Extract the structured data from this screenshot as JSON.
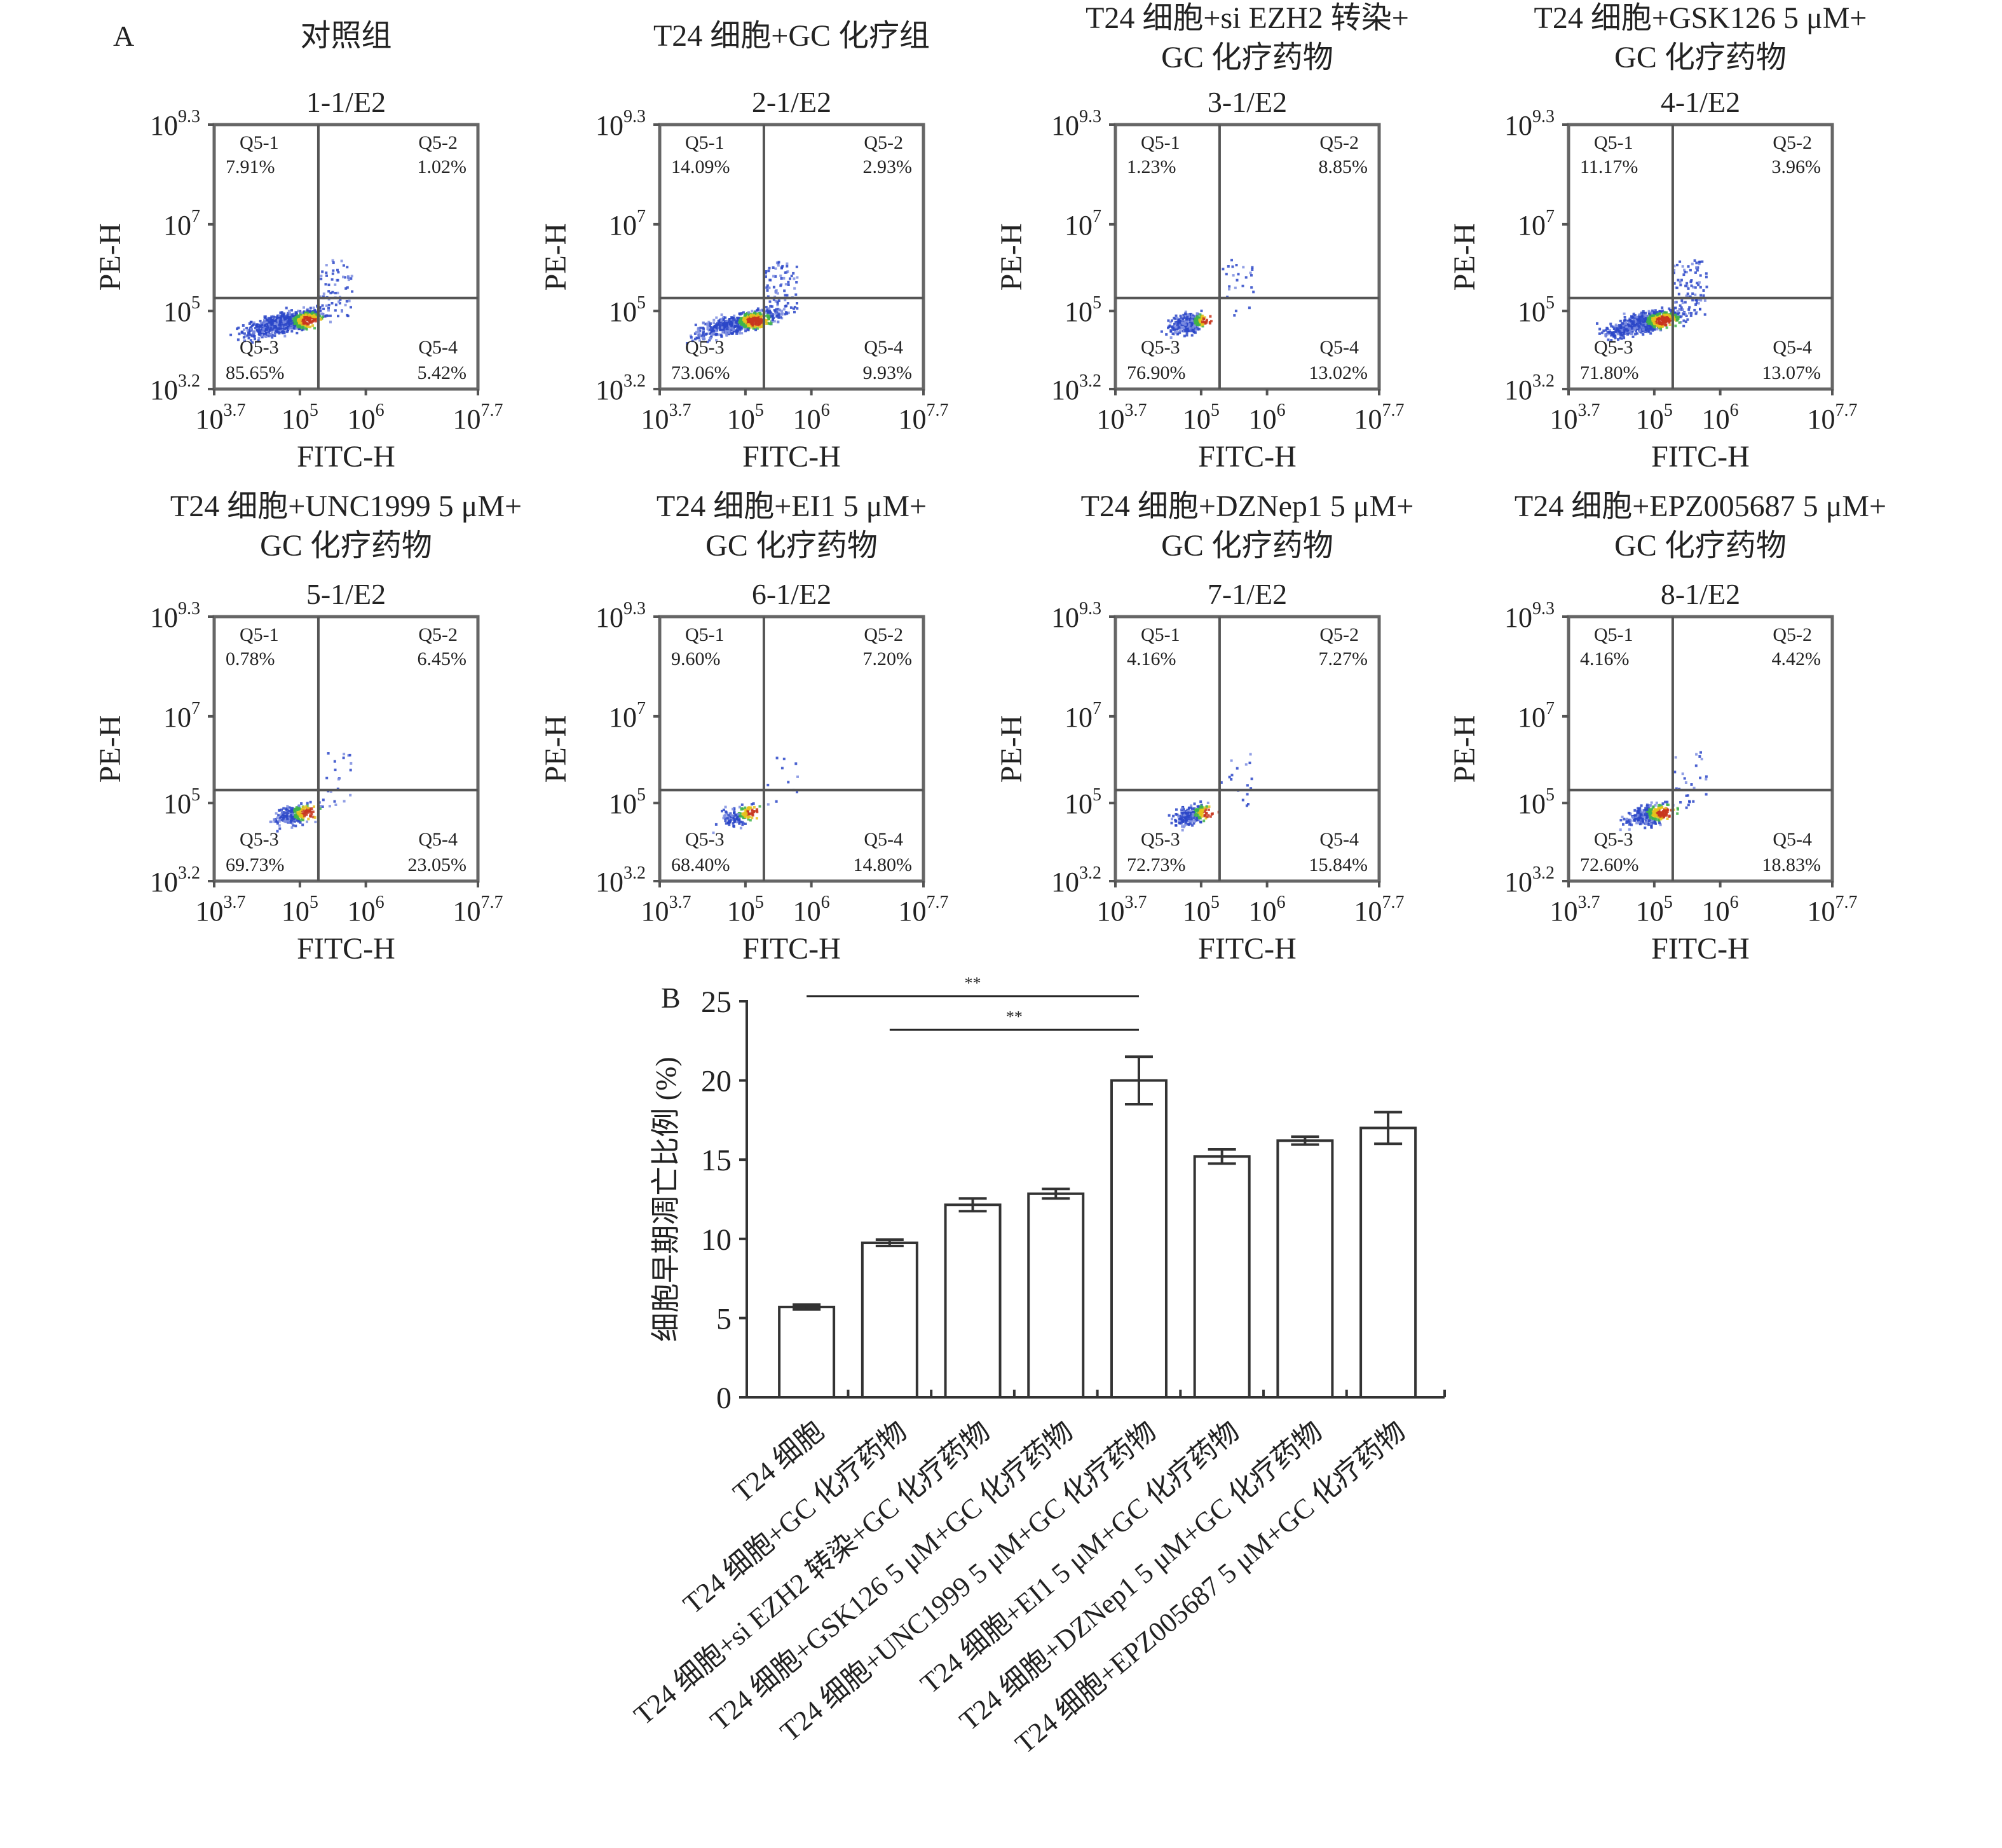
{
  "panel_a_label": "A",
  "panel_b_label": "B",
  "flow": {
    "x_axis_label": "FITC-H",
    "y_axis_label": "PE-H",
    "x_ticks": [
      {
        "base": "10",
        "exp": "3.7",
        "v": 3.7
      },
      {
        "base": "10",
        "exp": "5",
        "v": 5
      },
      {
        "base": "10",
        "exp": "6",
        "v": 6
      },
      {
        "base": "10",
        "exp": "7.7",
        "v": 7.7
      }
    ],
    "y_ticks": [
      {
        "base": "10",
        "exp": "9.3",
        "v": 9.3
      },
      {
        "base": "10",
        "exp": "7",
        "v": 7
      },
      {
        "base": "10",
        "exp": "5",
        "v": 5
      },
      {
        "base": "10",
        "exp": "3.2",
        "v": 3.2
      }
    ],
    "x_range_log10": [
      3.7,
      7.7
    ],
    "y_range_log10": [
      3.2,
      9.3
    ],
    "panels": [
      {
        "title": [
          "对照组"
        ],
        "sample": "1-1/E2",
        "q": [
          {
            "name": "Q5-1",
            "pct": "7.91%"
          },
          {
            "name": "Q5-2",
            "pct": "1.02%"
          },
          {
            "name": "Q5-3",
            "pct": "85.65%"
          },
          {
            "name": "Q5-4",
            "pct": "5.42%"
          }
        ]
      },
      {
        "title": [
          "T24 细胞+GC 化疗组"
        ],
        "sample": "2-1/E2",
        "q": [
          {
            "name": "Q5-1",
            "pct": "14.09%"
          },
          {
            "name": "Q5-2",
            "pct": "2.93%"
          },
          {
            "name": "Q5-3",
            "pct": "73.06%"
          },
          {
            "name": "Q5-4",
            "pct": "9.93%"
          }
        ]
      },
      {
        "title": [
          "T24 细胞+si EZH2 转染+",
          "GC 化疗药物"
        ],
        "sample": "3-1/E2",
        "q": [
          {
            "name": "Q5-1",
            "pct": "1.23%"
          },
          {
            "name": "Q5-2",
            "pct": "8.85%"
          },
          {
            "name": "Q5-3",
            "pct": "76.90%"
          },
          {
            "name": "Q5-4",
            "pct": "13.02%"
          }
        ]
      },
      {
        "title": [
          "T24 细胞+GSK126 5 μM+",
          "GC 化疗药物"
        ],
        "sample": "4-1/E2",
        "q": [
          {
            "name": "Q5-1",
            "pct": "11.17%"
          },
          {
            "name": "Q5-2",
            "pct": "3.96%"
          },
          {
            "name": "Q5-3",
            "pct": "71.80%"
          },
          {
            "name": "Q5-4",
            "pct": "13.07%"
          }
        ]
      },
      {
        "title": [
          "T24 细胞+UNC1999 5 μM+",
          "GC 化疗药物"
        ],
        "sample": "5-1/E2",
        "q": [
          {
            "name": "Q5-1",
            "pct": "0.78%"
          },
          {
            "name": "Q5-2",
            "pct": "6.45%"
          },
          {
            "name": "Q5-3",
            "pct": "69.73%"
          },
          {
            "name": "Q5-4",
            "pct": "23.05%"
          }
        ]
      },
      {
        "title": [
          "T24 细胞+EI1 5 μM+",
          "GC 化疗药物"
        ],
        "sample": "6-1/E2",
        "q": [
          {
            "name": "Q5-1",
            "pct": "9.60%"
          },
          {
            "name": "Q5-2",
            "pct": "7.20%"
          },
          {
            "name": "Q5-3",
            "pct": "68.40%"
          },
          {
            "name": "Q5-4",
            "pct": "14.80%"
          }
        ]
      },
      {
        "title": [
          "T24 细胞+DZNep1 5 μM+",
          "GC 化疗药物"
        ],
        "sample": "7-1/E2",
        "q": [
          {
            "name": "Q5-1",
            "pct": "4.16%"
          },
          {
            "name": "Q5-2",
            "pct": "7.27%"
          },
          {
            "name": "Q5-3",
            "pct": "72.73%"
          },
          {
            "name": "Q5-4",
            "pct": "15.84%"
          }
        ]
      },
      {
        "title": [
          "T24 细胞+EPZ005687 5 μM+",
          "GC 化疗药物"
        ],
        "sample": "8-1/E2",
        "q": [
          {
            "name": "Q5-1",
            "pct": "4.16%"
          },
          {
            "name": "Q5-2",
            "pct": "4.42%"
          },
          {
            "name": "Q5-3",
            "pct": "72.60%"
          },
          {
            "name": "Q5-4",
            "pct": "18.83%"
          }
        ]
      }
    ]
  },
  "chart_data": {
    "type": "bar",
    "title": "",
    "xlabel": "",
    "ylabel": "细胞早期凋亡比例 (%)",
    "ylim": [
      0,
      25
    ],
    "yticks": [
      "0",
      "5",
      "10",
      "15",
      "20",
      "25"
    ],
    "categories": [
      "T24 细胞",
      "T24 细胞+GC 化疗药物",
      "T24 细胞+si EZH2 转染+GC 化疗药物",
      "T24 细胞+GSK126 5 μM+GC 化疗药物",
      "T24 细胞+UNC1999 5 μM+GC 化疗药物",
      "T24 细胞+EI1 5 μM+GC 化疗药物",
      "T24 细胞+DZNep1 5 μM+GC 化疗药物",
      "T24 细胞+EPZ005687 5 μM+GC 化疗药物"
    ],
    "values": [
      5.7,
      9.75,
      12.15,
      12.85,
      20.0,
      15.2,
      16.2,
      17.0
    ],
    "errors": [
      0.15,
      0.2,
      0.4,
      0.3,
      1.5,
      0.45,
      0.25,
      1.0
    ],
    "significance": [
      {
        "from": 0,
        "to": 4,
        "label": "**"
      },
      {
        "from": 1,
        "to": 4,
        "label": "**"
      }
    ],
    "grid": false
  }
}
